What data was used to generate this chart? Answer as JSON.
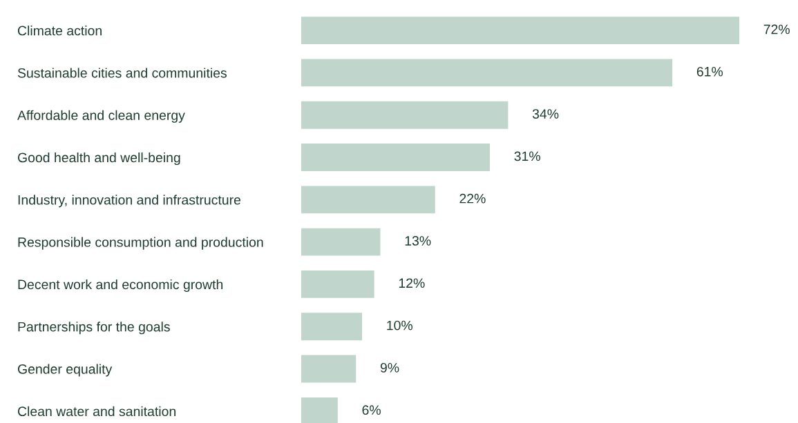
{
  "chart_data": {
    "type": "bar",
    "orientation": "horizontal",
    "categories": [
      "Climate action",
      "Sustainable cities and communities",
      "Affordable and clean energy",
      "Good health and well-being",
      "Industry, innovation and infrastructure",
      "Responsible consumption and production",
      "Decent work and economic growth",
      "Partnerships for the goals",
      "Gender equality",
      "Clean water and sanitation"
    ],
    "values": [
      72,
      61,
      34,
      31,
      22,
      13,
      12,
      10,
      9,
      6
    ],
    "value_labels": [
      "72%",
      "61%",
      "34%",
      "31%",
      "22%",
      "13%",
      "12%",
      "10%",
      "9%",
      "6%"
    ],
    "color": "#c0d5cc",
    "grid": false,
    "legend": false,
    "tick_labels": "y"
  }
}
